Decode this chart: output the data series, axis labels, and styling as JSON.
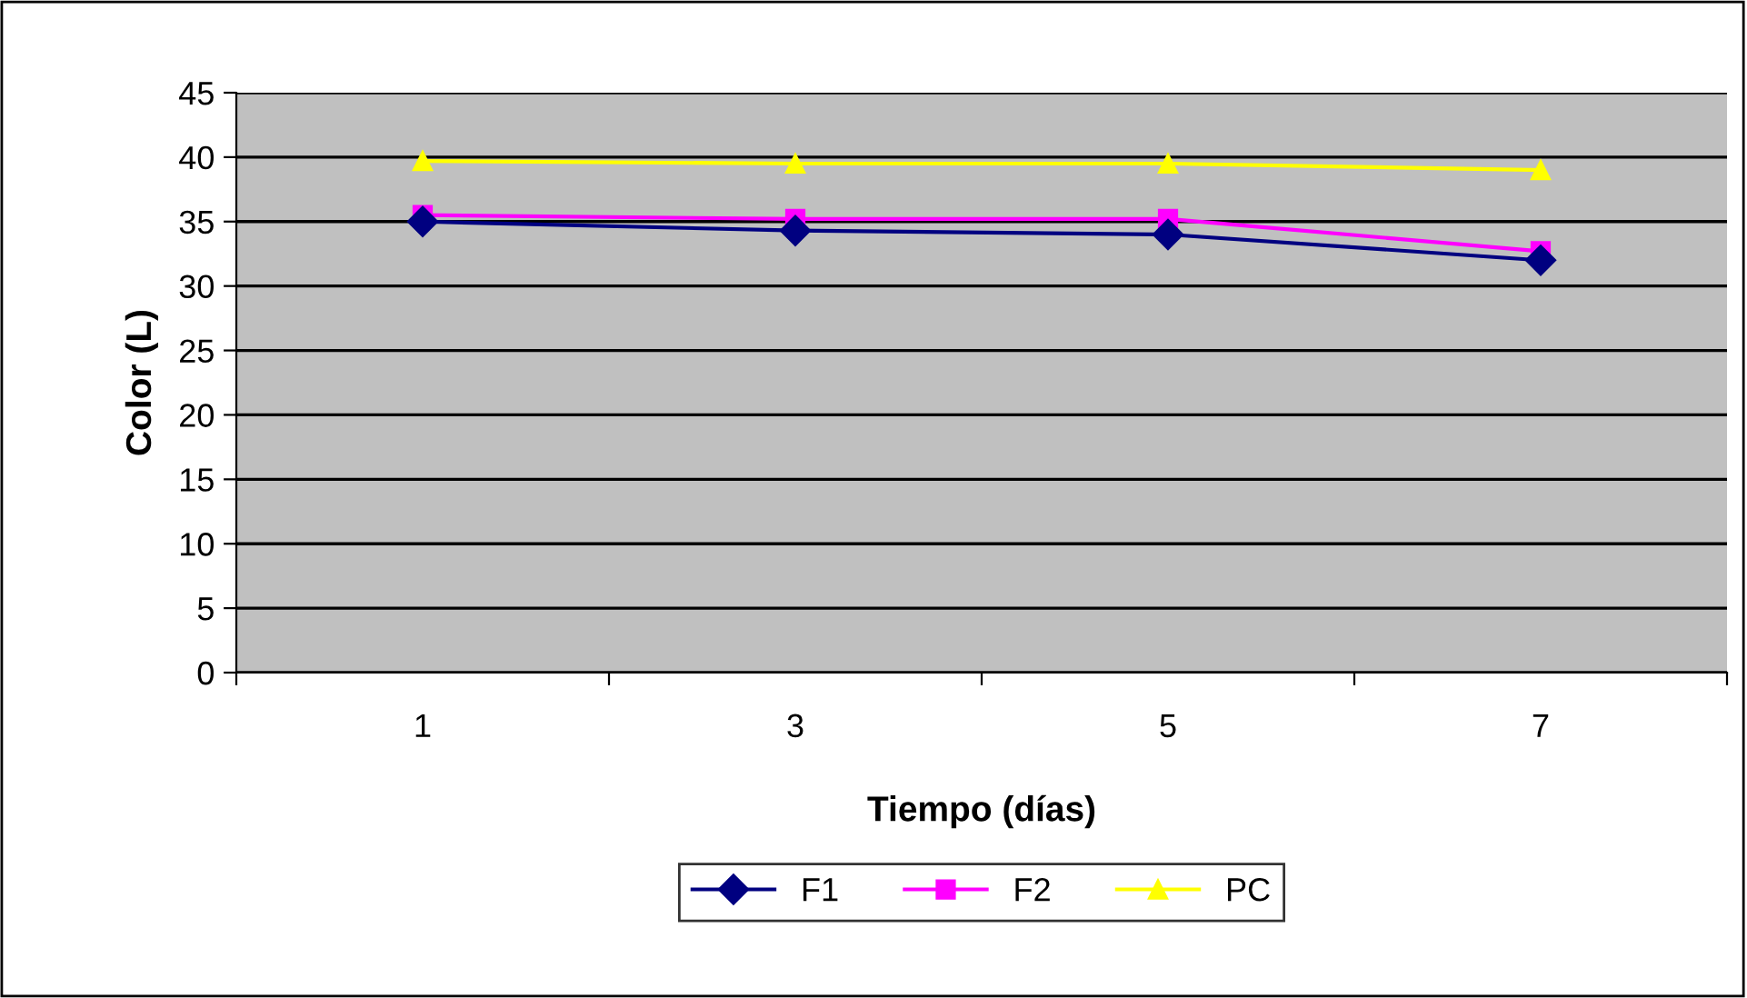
{
  "chart_data": {
    "type": "line",
    "xlabel": "Tiempo (días)",
    "ylabel": "Color (L)",
    "categories": [
      "1",
      "3",
      "5",
      "7"
    ],
    "series": [
      {
        "name": "F1",
        "color": "#000080",
        "marker": "diamond",
        "values": [
          35.0,
          34.3,
          34.0,
          32.0
        ]
      },
      {
        "name": "F2",
        "color": "#ff00ff",
        "marker": "square",
        "values": [
          35.5,
          35.2,
          35.2,
          32.7
        ]
      },
      {
        "name": "PC",
        "color": "#ffff00",
        "marker": "triangle",
        "values": [
          39.7,
          39.5,
          39.5,
          39.0
        ]
      }
    ],
    "ylim": [
      0,
      45
    ],
    "yticks": [
      0,
      5,
      10,
      15,
      20,
      25,
      30,
      35,
      40,
      45
    ],
    "grid": "y",
    "legend": "bottom"
  }
}
